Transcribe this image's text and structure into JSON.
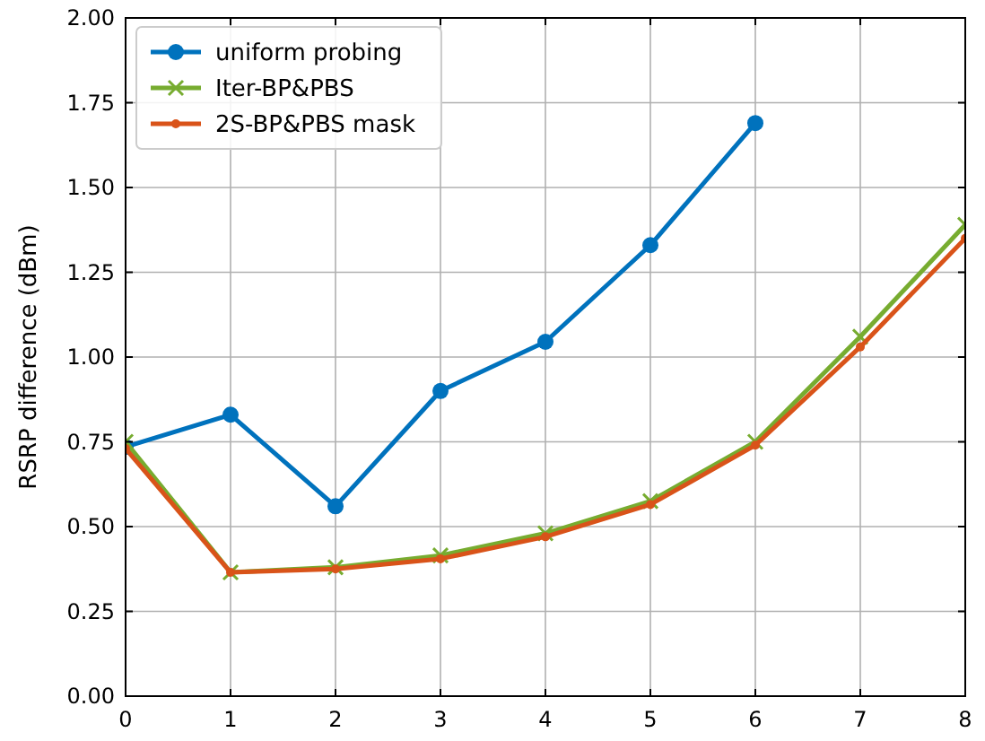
{
  "chart_data": {
    "type": "line",
    "ylabel": "RSRP difference (dBm)",
    "x": [
      0,
      1,
      2,
      3,
      4,
      5,
      6,
      7,
      8
    ],
    "series": [
      {
        "name": "uniform probing",
        "color": "#0072bd",
        "marker": "circle",
        "values": [
          0.735,
          0.83,
          0.56,
          0.9,
          1.045,
          1.33,
          1.69,
          null,
          null
        ]
      },
      {
        "name": "Iter-BP&PBS",
        "color": "#77ac30",
        "marker": "cross",
        "values": [
          0.75,
          0.365,
          0.38,
          0.415,
          0.48,
          0.575,
          0.75,
          1.06,
          1.39
        ]
      },
      {
        "name": "2S-BP&PBS mask",
        "color": "#d95319",
        "marker": "circle",
        "values": [
          0.73,
          0.365,
          0.375,
          0.405,
          0.47,
          0.565,
          0.74,
          1.03,
          1.35
        ]
      }
    ],
    "xlim": [
      0,
      8
    ],
    "xticks": [
      0,
      1,
      2,
      3,
      4,
      5,
      6,
      7,
      8
    ],
    "ylim": [
      0,
      2
    ],
    "yticks": [
      {
        "value": 0,
        "label": "0.00"
      },
      {
        "value": 0.25,
        "label": "0.25"
      },
      {
        "value": 0.5,
        "label": "0.50"
      },
      {
        "value": 0.75,
        "label": "0.75"
      },
      {
        "value": 1,
        "label": "1.00"
      },
      {
        "value": 1.25,
        "label": "1.25"
      },
      {
        "value": 1.5,
        "label": "1.50"
      },
      {
        "value": 1.75,
        "label": "1.75"
      },
      {
        "value": 2,
        "label": "2.00"
      }
    ],
    "grid": true,
    "legend": "top left"
  }
}
